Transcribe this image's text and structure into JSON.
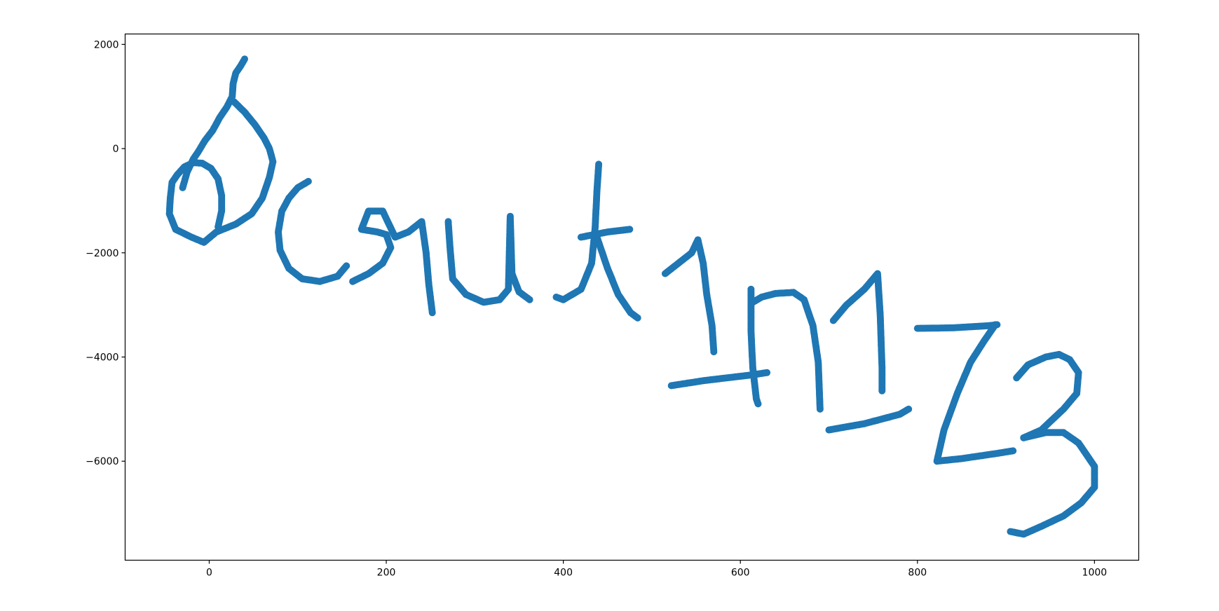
{
  "chart_data": {
    "type": "scatter",
    "title": "",
    "xlabel": "",
    "ylabel": "",
    "xlim": [
      -95,
      1050
    ],
    "ylim": [
      -7900,
      2200
    ],
    "grid": false,
    "legend": "none",
    "xticks": [
      0,
      200,
      400,
      600,
      800,
      1000
    ],
    "yticks": [
      2000,
      0,
      -2000,
      -4000,
      -6000
    ],
    "xtick_labels": [
      "0",
      "200",
      "400",
      "600",
      "800",
      "1000"
    ],
    "ytick_labels": [
      "2000",
      "0",
      "−2000",
      "−4000",
      "−6000"
    ],
    "series": [
      {
        "color": "#1f77b4",
        "strokes": [
          [
            [
              40,
              1720
            ],
            [
              36,
              1600
            ],
            [
              30,
              1450
            ],
            [
              27,
              1250
            ],
            [
              26,
              1000
            ],
            [
              20,
              800
            ],
            [
              12,
              600
            ],
            [
              4,
              350
            ],
            [
              -5,
              150
            ],
            [
              -12,
              -50
            ],
            [
              -18,
              -200
            ],
            [
              -25,
              -450
            ],
            [
              -30,
              -750
            ]
          ],
          [
            [
              28,
              900
            ],
            [
              40,
              700
            ],
            [
              52,
              450
            ],
            [
              62,
              200
            ],
            [
              68,
              0
            ],
            [
              72,
              -250
            ],
            [
              68,
              -550
            ],
            [
              60,
              -950
            ],
            [
              48,
              -1250
            ],
            [
              30,
              -1450
            ],
            [
              8,
              -1600
            ],
            [
              -6,
              -1800
            ],
            [
              -20,
              -1700
            ],
            [
              -38,
              -1550
            ],
            [
              -45,
              -1250
            ],
            [
              -44,
              -950
            ],
            [
              -42,
              -650
            ],
            [
              -36,
              -500
            ],
            [
              -28,
              -350
            ],
            [
              -18,
              -270
            ],
            [
              -8,
              -280
            ],
            [
              2,
              -380
            ],
            [
              10,
              -580
            ],
            [
              14,
              -900
            ],
            [
              14,
              -1200
            ],
            [
              10,
              -1500
            ]
          ],
          [
            [
              112,
              -630
            ],
            [
              100,
              -750
            ],
            [
              90,
              -950
            ],
            [
              82,
              -1200
            ],
            [
              78,
              -1600
            ],
            [
              80,
              -1950
            ],
            [
              90,
              -2300
            ],
            [
              105,
              -2500
            ],
            [
              125,
              -2550
            ],
            [
              145,
              -2450
            ],
            [
              155,
              -2250
            ]
          ],
          [
            [
              162,
              -2550
            ],
            [
              180,
              -2400
            ],
            [
              196,
              -2200
            ],
            [
              205,
              -1900
            ],
            [
              200,
              -1650
            ],
            [
              190,
              -1600
            ],
            [
              172,
              -1550
            ],
            [
              180,
              -1200
            ],
            [
              196,
              -1200
            ],
            [
              210,
              -1700
            ],
            [
              225,
              -1600
            ],
            [
              240,
              -1400
            ],
            [
              245,
              -2000
            ],
            [
              248,
              -2600
            ],
            [
              252,
              -3150
            ]
          ],
          [
            [
              270,
              -1400
            ],
            [
              272,
              -1900
            ],
            [
              275,
              -2500
            ],
            [
              290,
              -2800
            ],
            [
              310,
              -2950
            ],
            [
              328,
              -2900
            ],
            [
              338,
              -2700
            ],
            [
              340,
              -1300
            ],
            [
              342,
              -2400
            ],
            [
              350,
              -2750
            ],
            [
              362,
              -2900
            ]
          ],
          [
            [
              440,
              -300
            ],
            [
              438,
              -800
            ],
            [
              436,
              -1500
            ],
            [
              432,
              -2200
            ],
            [
              420,
              -2700
            ],
            [
              400,
              -2900
            ],
            [
              392,
              -2850
            ]
          ],
          [
            [
              420,
              -1700
            ],
            [
              450,
              -1600
            ],
            [
              475,
              -1550
            ]
          ],
          [
            [
              438,
              -1700
            ],
            [
              450,
              -2300
            ],
            [
              462,
              -2800
            ],
            [
              476,
              -3150
            ],
            [
              484,
              -3250
            ]
          ],
          [
            [
              515,
              -2400
            ],
            [
              530,
              -2200
            ],
            [
              545,
              -2000
            ],
            [
              552,
              -1750
            ],
            [
              558,
              -2200
            ],
            [
              562,
              -2800
            ],
            [
              568,
              -3400
            ],
            [
              570,
              -3900
            ]
          ],
          [
            [
              522,
              -4550
            ],
            [
              560,
              -4450
            ],
            [
              610,
              -4350
            ],
            [
              630,
              -4300
            ]
          ],
          [
            [
              612,
              -2700
            ],
            [
              612,
              -3500
            ],
            [
              614,
              -4200
            ],
            [
              618,
              -4800
            ],
            [
              620,
              -4900
            ]
          ],
          [
            [
              614,
              -2950
            ],
            [
              624,
              -2850
            ],
            [
              640,
              -2780
            ],
            [
              660,
              -2760
            ],
            [
              672,
              -2900
            ],
            [
              682,
              -3400
            ],
            [
              688,
              -4100
            ],
            [
              690,
              -5000
            ]
          ],
          [
            [
              705,
              -3300
            ],
            [
              720,
              -3000
            ],
            [
              740,
              -2700
            ],
            [
              755,
              -2400
            ],
            [
              758,
              -3200
            ],
            [
              760,
              -4200
            ],
            [
              760,
              -4650
            ]
          ],
          [
            [
              700,
              -5400
            ],
            [
              740,
              -5280
            ],
            [
              780,
              -5100
            ],
            [
              790,
              -5000
            ]
          ],
          [
            [
              800,
              -3450
            ],
            [
              840,
              -3440
            ],
            [
              880,
              -3400
            ],
            [
              890,
              -3380
            ]
          ],
          [
            [
              888,
              -3380
            ],
            [
              875,
              -3700
            ],
            [
              860,
              -4100
            ],
            [
              845,
              -4700
            ],
            [
              830,
              -5400
            ],
            [
              822,
              -6000
            ],
            [
              850,
              -5950
            ],
            [
              890,
              -5850
            ],
            [
              908,
              -5800
            ]
          ],
          [
            [
              912,
              -4400
            ],
            [
              925,
              -4150
            ],
            [
              945,
              -4000
            ],
            [
              960,
              -3950
            ],
            [
              972,
              -4050
            ],
            [
              982,
              -4300
            ],
            [
              980,
              -4700
            ],
            [
              965,
              -5000
            ],
            [
              940,
              -5400
            ],
            [
              920,
              -5550
            ]
          ],
          [
            [
              920,
              -5550
            ],
            [
              945,
              -5450
            ],
            [
              965,
              -5450
            ],
            [
              982,
              -5650
            ],
            [
              1000,
              -6100
            ],
            [
              1000,
              -6500
            ],
            [
              985,
              -6800
            ],
            [
              965,
              -7050
            ],
            [
              940,
              -7250
            ],
            [
              920,
              -7400
            ],
            [
              905,
              -7350
            ]
          ]
        ]
      }
    ]
  }
}
